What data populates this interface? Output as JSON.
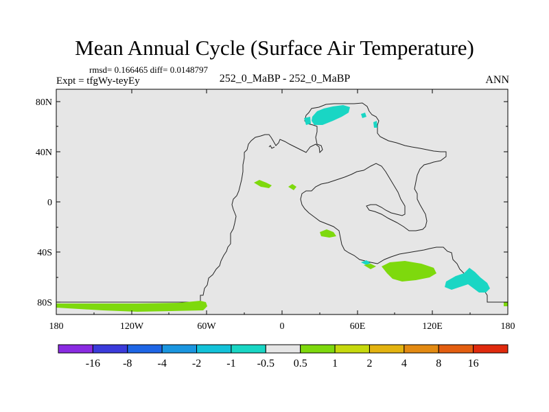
{
  "title": "Mean Annual Cycle (Surface Air Temperature)",
  "stats": "rmsd= 0.166465 diff= 0.0148797",
  "experiment": "Expt = tfgWy-teyEy",
  "center_label": "252_0_MaBP - 252_0_MaBP",
  "season": "ANN",
  "y_axis_labels": [
    "80N",
    "40N",
    "0",
    "40S",
    "80S"
  ],
  "x_axis_labels": [
    "180",
    "120W",
    "60W",
    "0",
    "60E",
    "120E",
    "180"
  ],
  "colorbar": {
    "colors": [
      "#8a2be2",
      "#3b3bdb",
      "#1e66e6",
      "#1a96e0",
      "#13c2d9",
      "#19d6c4",
      "#e6e6e6",
      "#7ed90d",
      "#c6d90d",
      "#e3b310",
      "#e38a12",
      "#e35e10",
      "#e02a0d"
    ],
    "labels": [
      "-16",
      "-8",
      "-4",
      "-2",
      "-1",
      "-0.5",
      "0.5",
      "1",
      "2",
      "4",
      "8",
      "16"
    ]
  },
  "map_colors": {
    "background": "#e6e6e6",
    "positive_anomaly": "#7ed90d",
    "negative_anomaly": "#19d6c4"
  }
}
